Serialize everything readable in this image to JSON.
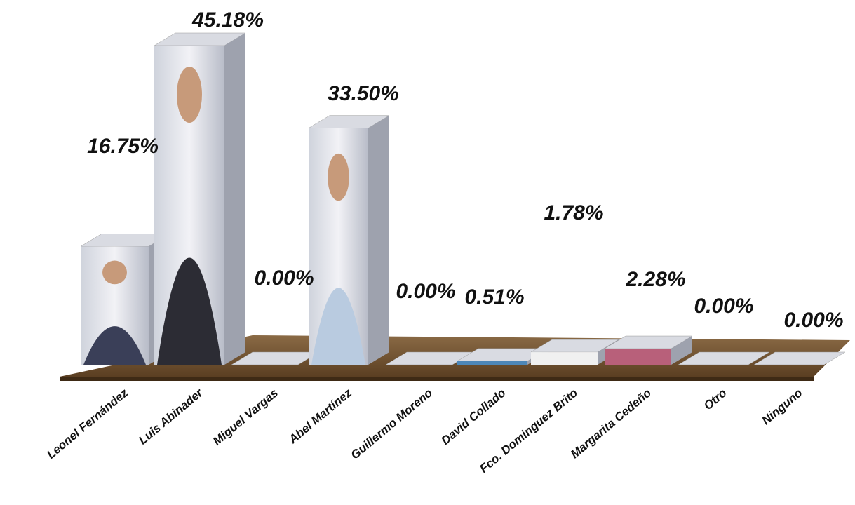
{
  "chart_data": {
    "type": "bar3d",
    "categories": [
      "Leonel Fernández",
      "Luis Abinader",
      "Miguel Vargas",
      "Abel Martínez",
      "Guillermo Moreno",
      "David Collado",
      "Fco. Dominguez Brito",
      "Margarita Cedeño",
      "Otro",
      "Ninguno"
    ],
    "values": [
      16.75,
      45.18,
      0.0,
      33.5,
      0.0,
      0.51,
      1.78,
      2.28,
      0.0,
      0.0
    ],
    "value_labels": [
      "16.75%",
      "45.18%",
      "0.00%",
      "33.50%",
      "0.00%",
      "0.51%",
      "1.78%",
      "2.28%",
      "0.00%",
      "0.00%"
    ],
    "ylim": [
      0,
      45.18
    ]
  }
}
